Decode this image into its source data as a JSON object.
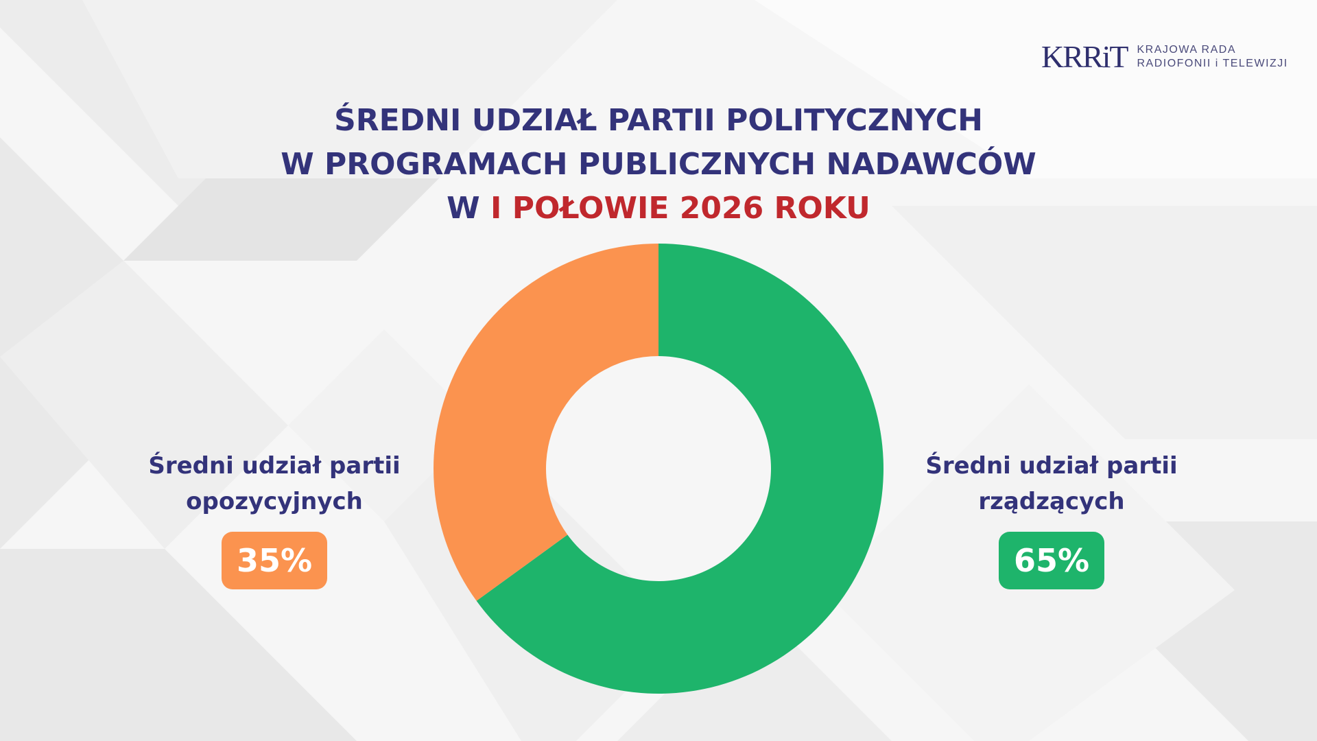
{
  "logo": {
    "mark": "KRRiT",
    "line1": "KRAJOWA RADA",
    "line2": "RADIOFONII i TELEWIZJI"
  },
  "title": {
    "line1": "ŚREDNI UDZIAŁ PARTII POLITYCZNYCH",
    "line2": "W PROGRAMACH PUBLICZNYCH NADAWCÓW",
    "line3_prefix": "W",
    "line3_accent": "I POŁOWIE 2026 ROKU"
  },
  "colors": {
    "title": "#33337a",
    "accent_red": "#c0282d",
    "orange": "#fb934f",
    "green": "#1eb46b"
  },
  "chart_data": {
    "type": "pie",
    "variant": "donut",
    "title": "ŚREDNI UDZIAŁ PARTII POLITYCZNYCH W PROGRAMACH PUBLICZNYCH NADAWCÓW W I POŁOWIE 2026 ROKU",
    "slices": [
      {
        "name": "Średni udział partii rządzących",
        "value": 65,
        "label": "65%",
        "color": "#1eb46b"
      },
      {
        "name": "Średni udział partii opozycyjnych",
        "value": 35,
        "label": "35%",
        "color": "#fb934f"
      }
    ]
  },
  "labels": {
    "left": {
      "line1": "Średni udział partii",
      "line2": "opozycyjnych",
      "value": "35%"
    },
    "right": {
      "line1": "Średni udział partii",
      "line2": "rządzących",
      "value": "65%"
    }
  }
}
